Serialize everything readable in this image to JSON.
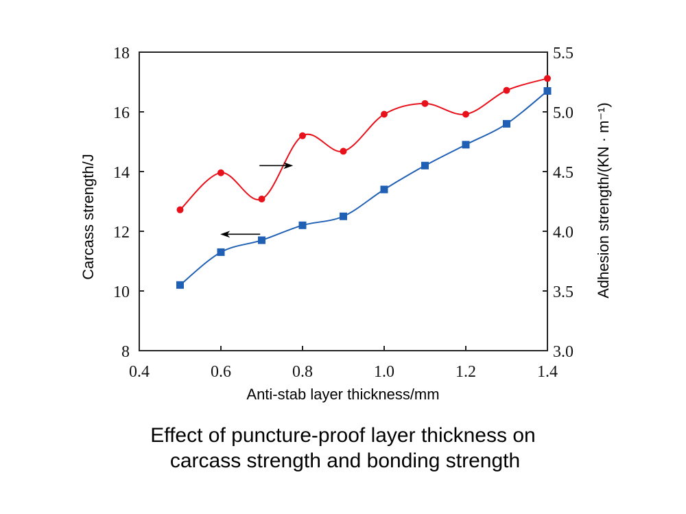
{
  "chart_data": {
    "type": "line",
    "title": [
      "Effect of puncture-proof layer thickness on",
      "carcass strength and bonding strength"
    ],
    "xlabel": "Anti-stab layer thickness/mm",
    "ylabel_left": "Carcass strength/J",
    "ylabel_right": "Adhesion strength/(KN · m⁻¹)",
    "xlim": [
      0.4,
      1.4
    ],
    "ylim_left": [
      8,
      18
    ],
    "ylim_right": [
      3.0,
      5.5
    ],
    "x_ticks": [
      "0.4",
      "0.6",
      "0.8",
      "1.0",
      "1.2",
      "1.4"
    ],
    "y_ticks_left": [
      "8",
      "10",
      "12",
      "14",
      "16",
      "18"
    ],
    "y_ticks_right": [
      "3.0",
      "3.5",
      "4.0",
      "4.5",
      "5.0",
      "5.5"
    ],
    "grid": false,
    "legend": "none (arrows indicate axis)",
    "series": [
      {
        "name": "Carcass strength",
        "axis": "left",
        "marker": "square",
        "color": "#1f5fb4",
        "x": [
          0.5,
          0.6,
          0.7,
          0.8,
          0.9,
          1.0,
          1.1,
          1.2,
          1.3,
          1.4
        ],
        "values": [
          10.2,
          11.3,
          11.7,
          12.2,
          12.5,
          13.4,
          14.2,
          14.9,
          15.6,
          16.7
        ]
      },
      {
        "name": "Adhesion strength",
        "axis": "right",
        "marker": "circle",
        "color": "#e8101a",
        "x": [
          0.5,
          0.6,
          0.7,
          0.8,
          0.9,
          1.0,
          1.1,
          1.2,
          1.3,
          1.4
        ],
        "values": [
          4.18,
          4.49,
          4.27,
          4.8,
          4.67,
          4.98,
          5.07,
          4.98,
          5.18,
          5.28
        ]
      }
    ],
    "annotations": [
      {
        "type": "arrow",
        "direction": "right",
        "points_to": "right axis",
        "series": "Adhesion strength",
        "at_x": 0.75,
        "at_y_right": 4.55
      },
      {
        "type": "arrow",
        "direction": "left",
        "points_to": "left axis",
        "series": "Carcass strength",
        "at_x": 0.75,
        "at_y_left": 11.9
      }
    ]
  }
}
